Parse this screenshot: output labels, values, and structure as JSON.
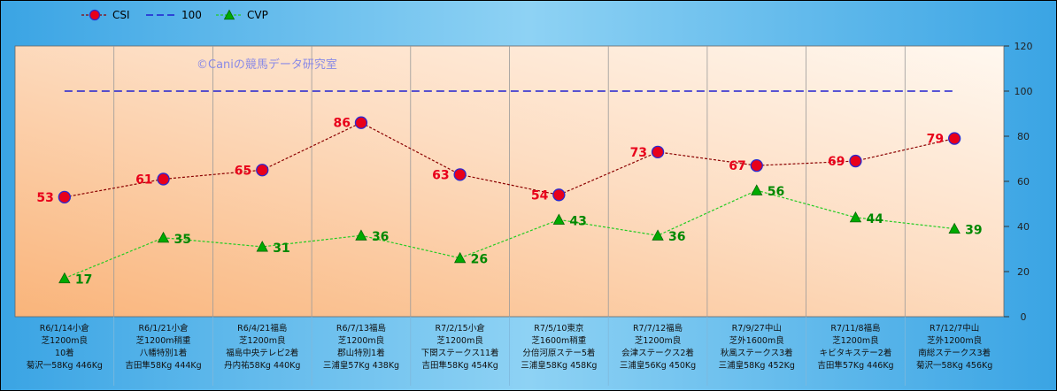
{
  "chart_data": {
    "type": "line",
    "watermark": "©Caniの競馬データ研究室",
    "ylim": [
      0,
      120
    ],
    "yticks": [
      "0",
      "20",
      "40",
      "60",
      "80",
      "100",
      "120"
    ],
    "categories": [
      [
        "R6/1/14小倉",
        "芝1200m良",
        "10着",
        "菊沢一58Kg 446Kg"
      ],
      [
        "R6/1/21小倉",
        "芝1200m稍重",
        "八幡特別1着",
        "吉田隼58Kg 444Kg"
      ],
      [
        "R6/4/21福島",
        "芝1200m良",
        "福島中央テレビ2着",
        "丹内祐58Kg 440Kg"
      ],
      [
        "R6/7/13福島",
        "芝1200m良",
        "郡山特別1着",
        "三浦皇57Kg 438Kg"
      ],
      [
        "R7/2/15小倉",
        "芝1200m良",
        "下関ステークス11着",
        "吉田隼58Kg 454Kg"
      ],
      [
        "R7/5/10東京",
        "芝1600m稍重",
        "分倍河原ステー5着",
        "三浦皇58Kg 458Kg"
      ],
      [
        "R7/7/12福島",
        "芝1200m良",
        "会津ステークス2着",
        "三浦皇56Kg 450Kg"
      ],
      [
        "R7/9/27中山",
        "芝外1600m良",
        "秋風ステークス3着",
        "三浦皇58Kg 452Kg"
      ],
      [
        "R7/11/8福島",
        "芝1200m良",
        "キビタキステー2着",
        "吉田隼57Kg 446Kg"
      ],
      [
        "R7/12/7中山",
        "芝外1200m良",
        "南総ステークス3着",
        "菊沢一58Kg 456Kg"
      ]
    ],
    "series": [
      {
        "name": "CSI",
        "values": [
          53,
          61,
          65,
          86,
          63,
          54,
          73,
          67,
          69,
          79
        ],
        "color": "#8B0000",
        "marker_color": "#E8001A",
        "label_color": "#E8001A",
        "style": "dotted-circle"
      },
      {
        "name": "100",
        "values": [
          100,
          100,
          100,
          100,
          100,
          100,
          100,
          100,
          100,
          100
        ],
        "color": "#2020D0",
        "style": "dashed"
      },
      {
        "name": "CVP",
        "values": [
          17,
          35,
          31,
          36,
          26,
          43,
          36,
          56,
          44,
          39
        ],
        "color": "#22CC22",
        "marker_color": "#00AA00",
        "label_color": "#008800",
        "style": "dotted-triangle"
      }
    ],
    "grid": true,
    "legend_position": "top-left"
  }
}
